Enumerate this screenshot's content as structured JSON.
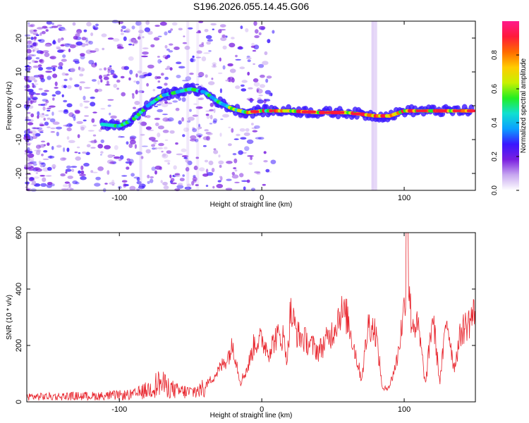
{
  "figure": {
    "title": "S196.2026.055.14.45.G06"
  },
  "chart_data": [
    {
      "type": "heatmap",
      "id": "spectrogram",
      "xlabel": "Height of straight line (km)",
      "ylabel": "Frequency (Hz)",
      "xlim": [
        -165,
        150
      ],
      "ylim": [
        -25,
        25
      ],
      "xticks": [
        -100,
        0,
        100
      ],
      "yticks": [
        -20,
        -10,
        0,
        10,
        20
      ],
      "colorbar": {
        "label": "Normalized spectral amplitude",
        "range": [
          0,
          1
        ],
        "ticks": [
          0.0,
          0.2,
          0.4,
          0.6,
          0.8
        ],
        "tick_labels": [
          "0.0",
          "0.2",
          "0.4",
          "0.6",
          "0.8"
        ],
        "colormap": [
          "#ffffff",
          "#c8a8f0",
          "#7a1fe0",
          "#3a16ff",
          "#0aa0ff",
          "#10e0d0",
          "#22ee22",
          "#c8f000",
          "#ffcc00",
          "#ff6a00",
          "#ff1a3a",
          "#ff1a8c"
        ]
      },
      "ridge": {
        "x": [
          -112,
          -100,
          -90,
          -80,
          -70,
          -60,
          -50,
          -40,
          -30,
          -20,
          -10,
          0,
          20,
          40,
          60,
          70,
          80,
          90,
          100,
          120,
          148
        ],
        "y": [
          -5.5,
          -6,
          -4,
          0,
          3,
          4,
          5,
          4,
          1,
          -1,
          -2,
          -1.5,
          -1.5,
          -2,
          -2,
          -2.5,
          -3,
          -3,
          -1.5,
          -1.5,
          -1.5
        ]
      }
    },
    {
      "type": "line",
      "id": "snr",
      "xlabel": "Height of straight line (km)",
      "ylabel": "SNR (10 * v/v)",
      "xlim": [
        -165,
        150
      ],
      "ylim": [
        0,
        600
      ],
      "xticks": [
        -100,
        0,
        100
      ],
      "yticks": [
        0,
        200,
        400,
        600
      ],
      "color": "#e8262e",
      "series": [
        {
          "x": [
            -165,
            -150,
            -130,
            -110,
            -90,
            -80,
            -72,
            -60,
            -50,
            -40,
            -32,
            -25,
            -20,
            -15,
            -10,
            -5,
            0,
            5,
            10,
            15,
            18,
            20,
            25,
            30,
            40,
            50,
            55,
            60,
            70,
            75,
            80,
            85,
            90,
            95,
            100,
            102,
            105,
            110,
            115,
            120,
            125,
            130,
            135,
            140,
            145,
            150
          ],
          "y": [
            22,
            22,
            24,
            25,
            30,
            50,
            80,
            45,
            40,
            55,
            100,
            150,
            200,
            70,
            120,
            210,
            220,
            180,
            230,
            230,
            150,
            320,
            240,
            220,
            180,
            250,
            320,
            300,
            80,
            280,
            250,
            40,
            60,
            150,
            330,
            500,
            290,
            260,
            60,
            310,
            70,
            300,
            120,
            250,
            280,
            320
          ]
        }
      ]
    }
  ]
}
